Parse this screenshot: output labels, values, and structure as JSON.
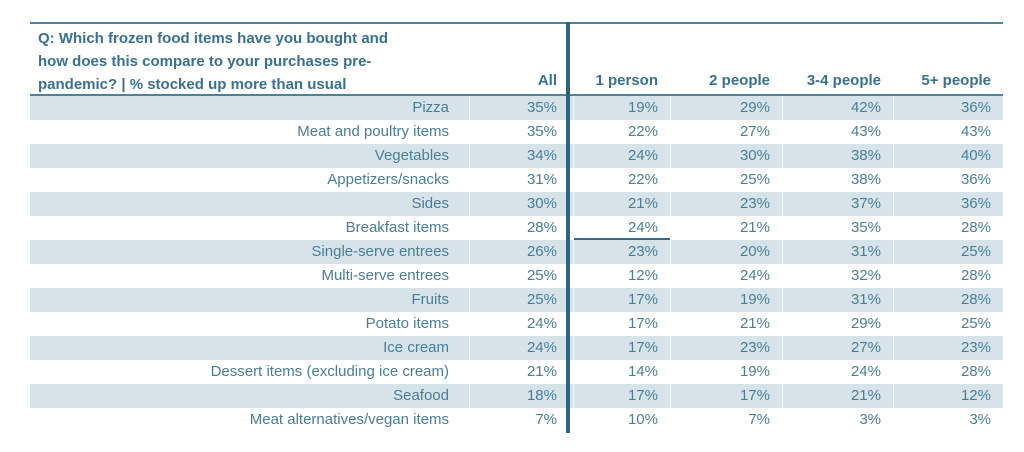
{
  "colors": {
    "background": "#ffffff",
    "text": "#4a7d98",
    "heading": "#3a7090",
    "row_shade": "#d6e4ea",
    "line": "#4e81a0",
    "divider": "#2e647f",
    "cell_underline": "#36688a"
  },
  "header": {
    "question_lines": [
      "Q: Which frozen food items have you bought and",
      "how does this compare to your purchases pre-",
      "pandemic? | % stocked up more than usual"
    ],
    "columns": [
      "All",
      "1 person",
      "2 people",
      "3-4 people",
      "5+ people"
    ]
  },
  "annotations": {
    "underlined_cell": {
      "row_label": "Breakfast items",
      "column": "1 person"
    }
  },
  "chart_data": {
    "type": "table",
    "title": "Q: Which frozen food items have you bought and how does this compare to your purchases pre-pandemic? | % stocked up more than usual",
    "unit": "%",
    "columns": [
      "All",
      "1 person",
      "2 people",
      "3-4 people",
      "5+ people"
    ],
    "rows": [
      {
        "label": "Pizza",
        "values": [
          35,
          19,
          29,
          42,
          36
        ]
      },
      {
        "label": "Meat and poultry items",
        "values": [
          35,
          22,
          27,
          43,
          43
        ]
      },
      {
        "label": "Vegetables",
        "values": [
          34,
          24,
          30,
          38,
          40
        ]
      },
      {
        "label": "Appetizers/snacks",
        "values": [
          31,
          22,
          25,
          38,
          36
        ]
      },
      {
        "label": "Sides",
        "values": [
          30,
          21,
          23,
          37,
          36
        ]
      },
      {
        "label": "Breakfast items",
        "values": [
          28,
          24,
          21,
          35,
          28
        ]
      },
      {
        "label": "Single-serve entrees",
        "values": [
          26,
          23,
          20,
          31,
          25
        ]
      },
      {
        "label": "Multi-serve entrees",
        "values": [
          25,
          12,
          24,
          32,
          28
        ]
      },
      {
        "label": "Fruits",
        "values": [
          25,
          17,
          19,
          31,
          28
        ]
      },
      {
        "label": "Potato items",
        "values": [
          24,
          17,
          21,
          29,
          25
        ]
      },
      {
        "label": "Ice cream",
        "values": [
          24,
          17,
          23,
          27,
          23
        ]
      },
      {
        "label": "Dessert items (excluding ice cream)",
        "values": [
          21,
          14,
          19,
          24,
          28
        ]
      },
      {
        "label": "Seafood",
        "values": [
          18,
          17,
          17,
          21,
          12
        ]
      },
      {
        "label": "Meat alternatives/vegan items",
        "values": [
          7,
          10,
          7,
          3,
          3
        ]
      }
    ]
  }
}
